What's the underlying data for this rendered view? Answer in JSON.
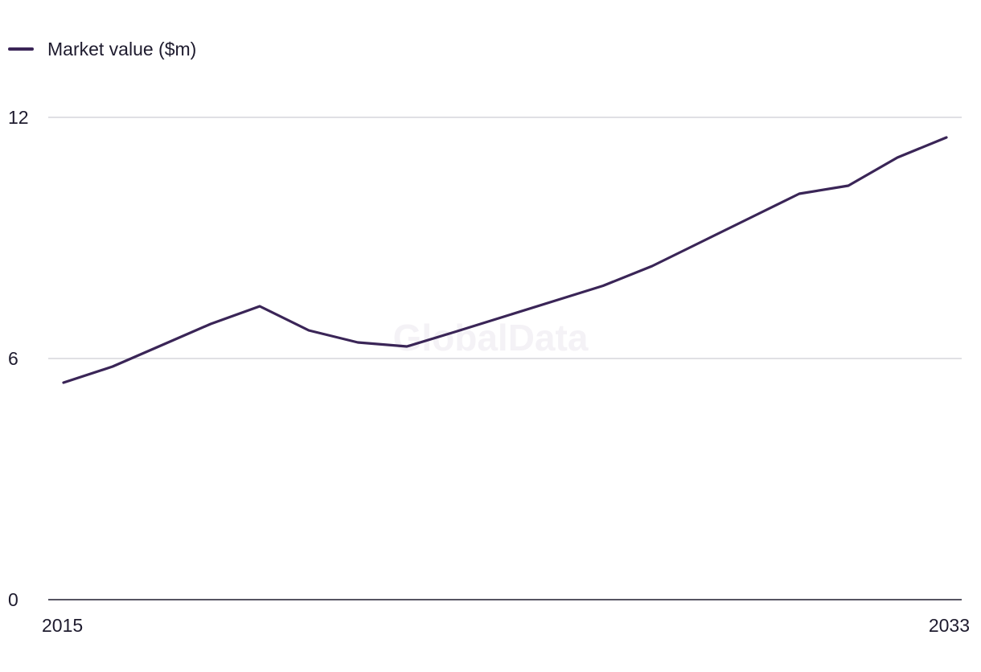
{
  "watermark": "GlobalData",
  "chart_data": {
    "type": "line",
    "title": "",
    "xlabel": "",
    "ylabel": "",
    "x": [
      2015,
      2016,
      2017,
      2018,
      2019,
      2020,
      2021,
      2022,
      2023,
      2024,
      2025,
      2026,
      2027,
      2028,
      2029,
      2030,
      2031,
      2032,
      2033
    ],
    "x_tick_labels": [
      "2015",
      "2033"
    ],
    "ylim": [
      0,
      12
    ],
    "y_ticks": [
      0,
      6,
      12
    ],
    "y_tick_labels": [
      "0",
      "6",
      "12"
    ],
    "grid": true,
    "legend_position": "top-left",
    "series": [
      {
        "name": "Market value ($m)",
        "color": "#3a2557",
        "values": [
          5.4,
          5.8,
          6.33,
          6.86,
          7.3,
          6.7,
          6.4,
          6.3,
          6.67,
          7.05,
          7.43,
          7.81,
          8.3,
          8.9,
          9.5,
          10.1,
          10.3,
          11.0,
          11.5
        ]
      }
    ]
  }
}
